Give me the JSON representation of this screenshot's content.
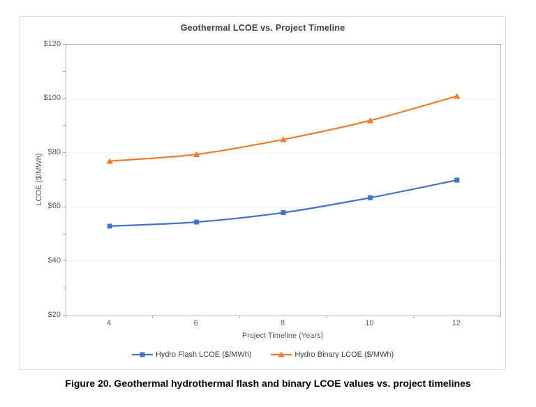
{
  "figure": {
    "caption": "Figure 20. Geothermal hydrothermal flash and binary LCOE values vs. project timelines"
  },
  "chart_data": {
    "type": "line",
    "title": "Geothermal LCOE vs. Project Timeline",
    "categories": [
      "4",
      "6",
      "8",
      "10",
      "12"
    ],
    "series": [
      {
        "name": "Hydro Flash LCOE ($/MWh)",
        "color": "#4472C4",
        "marker": "square",
        "values": [
          53,
          54.5,
          58,
          63.5,
          70
        ]
      },
      {
        "name": "Hydro Binary LCOE ($/MWh)",
        "color": "#ED7D31",
        "marker": "triangle",
        "values": [
          77,
          79.5,
          85,
          92,
          101
        ]
      }
    ],
    "xlabel": "Project Timeline (Years)",
    "ylabel": "LCOE ($/MWh)",
    "ylim": [
      20,
      120
    ],
    "ytick_step": 20,
    "ytick_minor_step": 10,
    "ytick_labels": [
      "$20",
      "$40",
      "$60",
      "$80",
      "$100",
      "$120"
    ],
    "grid": true,
    "legend_position": "bottom",
    "colors": {
      "grid": "#ededed",
      "axis": "#a9b1bf",
      "tick_text": "#595959",
      "title_text": "#404040"
    }
  }
}
